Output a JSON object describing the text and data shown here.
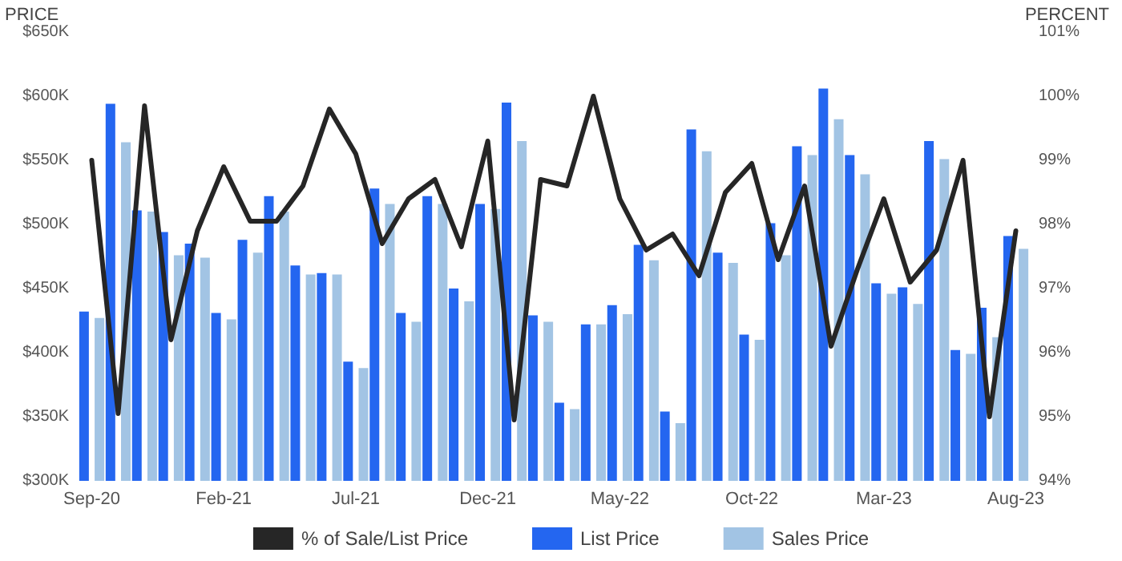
{
  "chart_data": {
    "type": "bar",
    "ylabel": "PRICE",
    "y2label": "PERCENT",
    "categories": [
      "Sep-20",
      null,
      null,
      null,
      null,
      "Feb-21",
      null,
      null,
      null,
      null,
      "Jul-21",
      null,
      null,
      null,
      null,
      "Dec-21",
      null,
      null,
      null,
      null,
      "May-22",
      null,
      null,
      null,
      null,
      "Oct-22",
      null,
      null,
      null,
      null,
      "Mar-23",
      null,
      null,
      null,
      null,
      "Aug-23"
    ],
    "series": [
      {
        "name": "% of Sale/List Price",
        "type": "line",
        "axis": "y2",
        "color": "#262626",
        "values": [
          99.0,
          95.05,
          99.85,
          96.2,
          97.9,
          98.9,
          98.05,
          98.05,
          98.6,
          99.8,
          99.1,
          97.7,
          98.4,
          98.7,
          97.65,
          99.3,
          94.95,
          98.7,
          98.6,
          100.0,
          98.4,
          97.6,
          97.85,
          97.2,
          98.5,
          98.95,
          97.45,
          98.6,
          96.1,
          97.3,
          98.4,
          97.1,
          97.6,
          99.0,
          95.0,
          97.9
        ]
      },
      {
        "name": "List Price",
        "color": "#2466f0",
        "values": [
          432000,
          594000,
          511000,
          494000,
          485000,
          431000,
          488000,
          522000,
          468000,
          462000,
          393000,
          528000,
          431000,
          522000,
          450000,
          516000,
          595000,
          429000,
          361000,
          422000,
          437000,
          484000,
          354000,
          574000,
          478000,
          414000,
          501000,
          561000,
          606000,
          554000,
          454000,
          451000,
          565000,
          402000,
          435000,
          491000
        ]
      },
      {
        "name": "Sales Price",
        "color": "#a2c4e4",
        "values": [
          427000,
          564000,
          510000,
          476000,
          474000,
          426000,
          478000,
          510000,
          461000,
          461000,
          388000,
          516000,
          424000,
          516000,
          440000,
          512000,
          565000,
          424000,
          356000,
          422000,
          430000,
          472000,
          345000,
          557000,
          470000,
          410000,
          476000,
          554000,
          582000,
          539000,
          446000,
          438000,
          551000,
          399000,
          412000,
          481000
        ]
      }
    ],
    "ylim": [
      300000,
      650000
    ],
    "yticks": [
      {
        "value": 300000,
        "label": "$300K"
      },
      {
        "value": 350000,
        "label": "$350K"
      },
      {
        "value": 400000,
        "label": "$400K"
      },
      {
        "value": 450000,
        "label": "$450K"
      },
      {
        "value": 500000,
        "label": "$500K"
      },
      {
        "value": 550000,
        "label": "$550K"
      },
      {
        "value": 600000,
        "label": "$600K"
      },
      {
        "value": 650000,
        "label": "$650K"
      }
    ],
    "y2lim": [
      94,
      101
    ],
    "y2ticks": [
      {
        "value": 94,
        "label": "94%"
      },
      {
        "value": 95,
        "label": "95%"
      },
      {
        "value": 96,
        "label": "96%"
      },
      {
        "value": 97,
        "label": "97%"
      },
      {
        "value": 98,
        "label": "98%"
      },
      {
        "value": 99,
        "label": "99%"
      },
      {
        "value": 100,
        "label": "100%"
      },
      {
        "value": 101,
        "label": "101%"
      }
    ],
    "grid": false,
    "legend": "bottom",
    "marker": "none",
    "line_style": "solid"
  }
}
